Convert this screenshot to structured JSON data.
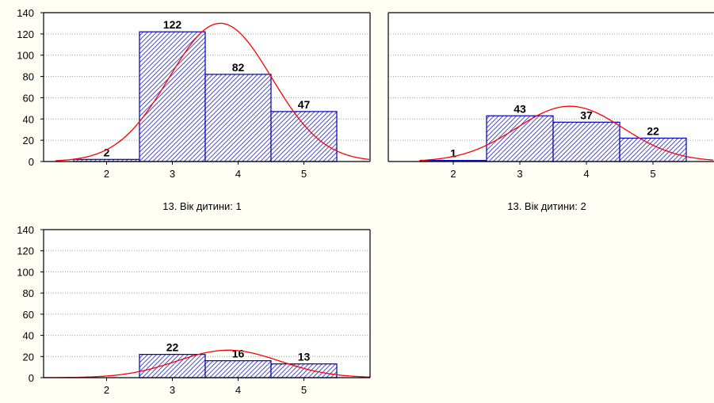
{
  "colors": {
    "background": "#FFFFF5",
    "bar_edge": "#0000B0",
    "bar_hatch": "#2020C0",
    "curve": "#FF0000",
    "grid": "#9A9A9A",
    "text": "#000000"
  },
  "chart_data": [
    {
      "type": "bar",
      "title": "13. Вік дитини: 1",
      "categories": [
        "2",
        "3",
        "4",
        "5"
      ],
      "values": [
        2,
        122,
        82,
        47
      ],
      "data_labels": [
        "2",
        "122",
        "82",
        "47"
      ],
      "ylim": [
        0,
        140
      ],
      "yticks": [
        "0",
        "20",
        "40",
        "60",
        "80",
        "100",
        "120",
        "140"
      ],
      "grid": true,
      "overlay": "normal-curve",
      "curve_peak": 130
    },
    {
      "type": "bar",
      "title": "13. Вік дитини: 2",
      "categories": [
        "2",
        "3",
        "4",
        "5"
      ],
      "values": [
        1,
        43,
        37,
        22
      ],
      "data_labels": [
        "1",
        "43",
        "37",
        "22"
      ],
      "ylim": [
        0,
        140
      ],
      "yticks": [],
      "grid": true,
      "overlay": "normal-curve",
      "curve_peak": 52
    },
    {
      "type": "bar",
      "title": "",
      "categories": [
        "2",
        "3",
        "4",
        "5"
      ],
      "values": [
        0,
        22,
        16,
        13
      ],
      "data_labels": [
        "",
        "22",
        "16",
        "13"
      ],
      "ylim": [
        0,
        140
      ],
      "yticks": [
        "0",
        "20",
        "40",
        "60",
        "80",
        "100",
        "120",
        "140"
      ],
      "grid": true,
      "overlay": "normal-curve",
      "curve_peak": 26
    }
  ]
}
